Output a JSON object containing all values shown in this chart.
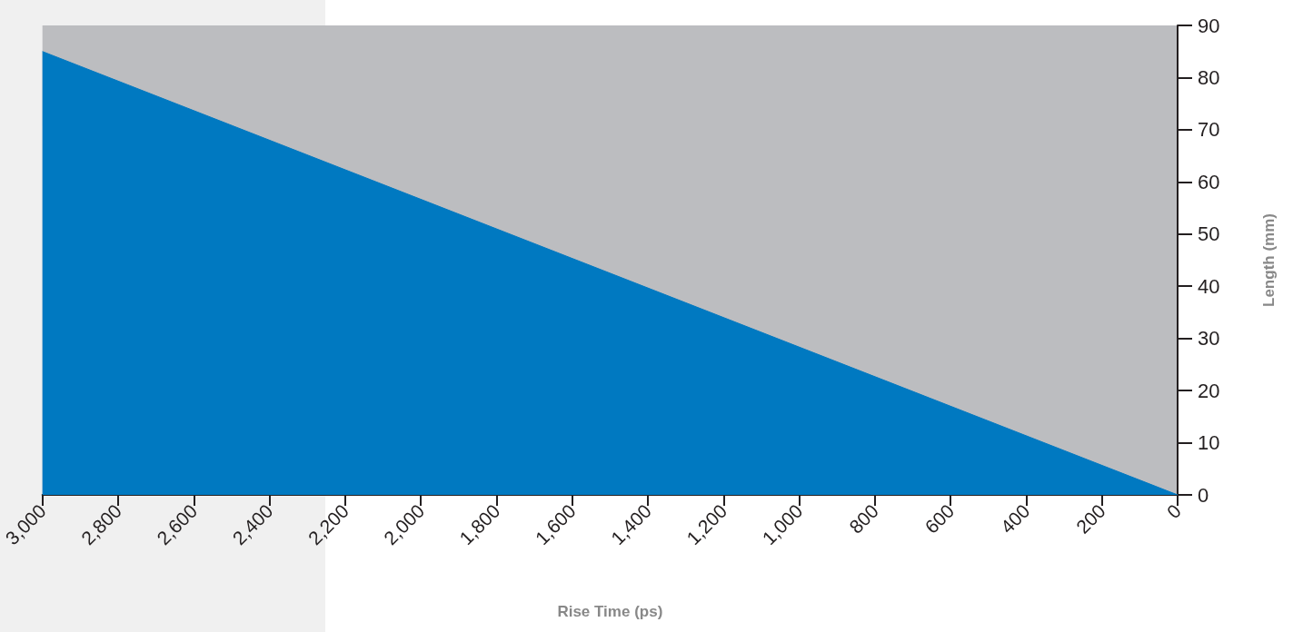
{
  "chart_data": {
    "type": "area",
    "xlabel": "Rise Time (ps)",
    "ylabel": "Length (mm)",
    "series": [
      {
        "x": [
          3000,
          0
        ],
        "values": [
          85,
          0
        ],
        "color": "#0079c1"
      }
    ],
    "xlim": [
      3000,
      0
    ],
    "xticks": [
      {
        "value": 3000,
        "label": "3,000"
      },
      {
        "value": 2800,
        "label": "2,800"
      },
      {
        "value": 2600,
        "label": "2,600"
      },
      {
        "value": 2400,
        "label": "2,400"
      },
      {
        "value": 2200,
        "label": "2,200"
      },
      {
        "value": 2000,
        "label": "2,000"
      },
      {
        "value": 1800,
        "label": "1,800"
      },
      {
        "value": 1600,
        "label": "1,600"
      },
      {
        "value": 1400,
        "label": "1,400"
      },
      {
        "value": 1200,
        "label": "1,200"
      },
      {
        "value": 1000,
        "label": "1,000"
      },
      800,
      600,
      400,
      200,
      0
    ],
    "ylim": [
      0,
      90
    ],
    "yticks": [
      0,
      10,
      20,
      30,
      40,
      50,
      60,
      70,
      80,
      90
    ],
    "marker": "none"
  }
}
